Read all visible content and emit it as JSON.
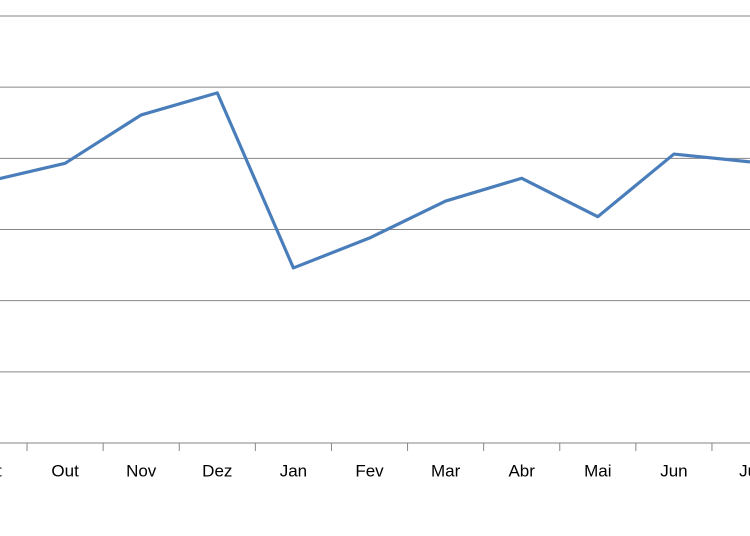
{
  "chart_data": {
    "type": "line",
    "categories": [
      "Set",
      "Out",
      "Nov",
      "Dez",
      "Jan",
      "Fev",
      "Mar",
      "Abr",
      "Mai",
      "Jun",
      "Jul"
    ],
    "values": [
      3.68,
      3.93,
      4.61,
      4.92,
      2.46,
      2.88,
      3.4,
      3.72,
      3.18,
      4.06,
      3.95
    ],
    "color": "#4a7ebb",
    "ylim": [
      0,
      6
    ],
    "yticks": [
      0,
      1,
      2,
      3,
      4,
      5,
      6
    ],
    "grid": true
  }
}
